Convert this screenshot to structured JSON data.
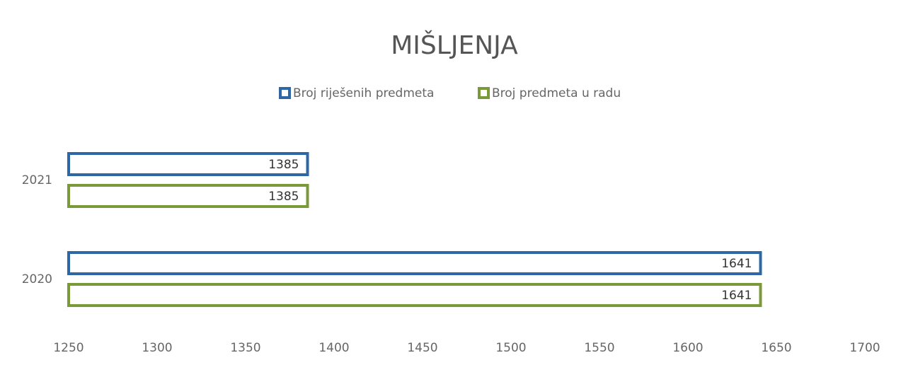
{
  "chart_data": {
    "type": "bar",
    "orientation": "horizontal",
    "title": "MIŠLJENJA",
    "categories": [
      "2021",
      "2020"
    ],
    "series": [
      {
        "name": "Broj riješenih predmeta",
        "color": "#2e67a6",
        "values": [
          1385,
          1641
        ]
      },
      {
        "name": "Broj predmeta u radu",
        "color": "#7a9a3a",
        "values": [
          1385,
          1641
        ]
      }
    ],
    "xlim": [
      1250,
      1700
    ],
    "xticks": [
      1250,
      1300,
      1350,
      1400,
      1450,
      1500,
      1550,
      1600,
      1650,
      1700
    ],
    "grid": false,
    "legend": "top"
  }
}
